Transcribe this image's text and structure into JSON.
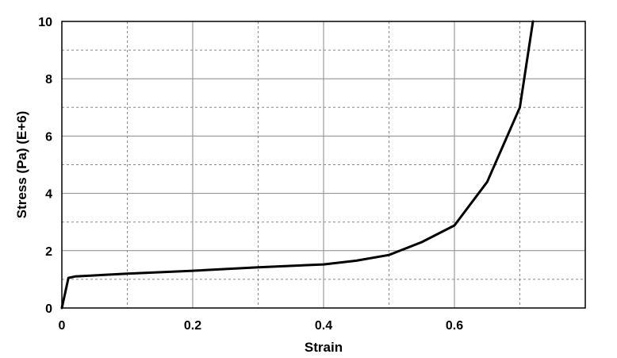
{
  "chart_data": {
    "type": "line",
    "title": "",
    "xlabel": "Strain",
    "ylabel": "Stress (Pa) (E+6)",
    "xlim": [
      0,
      0.8
    ],
    "ylim": [
      0,
      10
    ],
    "x_ticks": [
      0,
      0.2,
      0.4,
      0.6
    ],
    "x_tick_labels": [
      "0",
      "0.2",
      "0.4",
      "0.6"
    ],
    "x_grid": [
      0,
      0.1,
      0.2,
      0.3,
      0.4,
      0.5,
      0.6,
      0.7,
      0.8
    ],
    "y_ticks": [
      0,
      2,
      4,
      6,
      8,
      10
    ],
    "y_tick_labels": [
      "0",
      "2",
      "4",
      "6",
      "8",
      "10"
    ],
    "y_grid": [
      0,
      1,
      2,
      3,
      4,
      5,
      6,
      7,
      8,
      9,
      10
    ],
    "grid": true,
    "legend": "none",
    "colors": {
      "line": "#000000",
      "grid": "#888888",
      "frame": "#000000"
    },
    "series": [
      {
        "x": [
          0,
          0.01,
          0.02,
          0.1,
          0.2,
          0.3,
          0.4,
          0.45,
          0.5,
          0.55,
          0.6,
          0.65,
          0.7,
          0.72
        ],
        "values": [
          0,
          1.05,
          1.1,
          1.2,
          1.3,
          1.42,
          1.52,
          1.65,
          1.85,
          2.3,
          2.88,
          4.4,
          7.0,
          10.0
        ]
      }
    ]
  }
}
